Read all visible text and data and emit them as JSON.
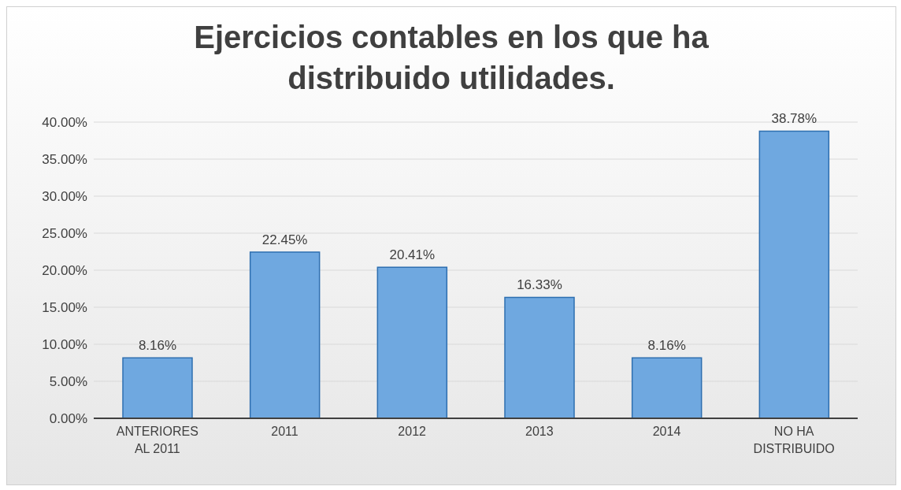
{
  "chart_data": {
    "type": "bar",
    "title": "Ejercicios contables en los que ha distribuido utilidades.",
    "categories": [
      "ANTERIORES AL 2011",
      "2011",
      "2012",
      "2013",
      "2014",
      "NO HA DISTRIBUIDO"
    ],
    "values": [
      8.16,
      22.45,
      20.41,
      16.33,
      8.16,
      38.78
    ],
    "value_labels": [
      "8.16%",
      "22.45%",
      "20.41%",
      "16.33%",
      "8.16%",
      "38.78%"
    ],
    "color": "#6fa8e0",
    "ylim": [
      0,
      40
    ],
    "yticks": [
      {
        "value": 0,
        "label": "0.00%"
      },
      {
        "value": 5,
        "label": "5.00%"
      },
      {
        "value": 10,
        "label": "10.00%"
      },
      {
        "value": 15,
        "label": "15.00%"
      },
      {
        "value": 20,
        "label": "20.00%"
      },
      {
        "value": 25,
        "label": "25.00%"
      },
      {
        "value": 30,
        "label": "30.00%"
      },
      {
        "value": 35,
        "label": "35.00%"
      },
      {
        "value": 40,
        "label": "40.00%"
      }
    ],
    "grid": "y"
  }
}
